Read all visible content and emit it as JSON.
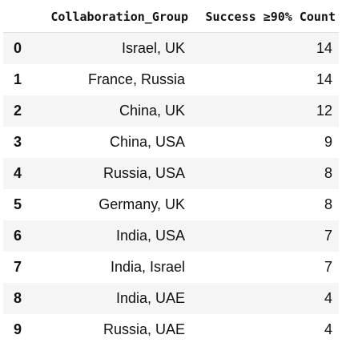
{
  "table": {
    "index_header": "",
    "columns": [
      "Collaboration_Group",
      "Success ≥90% Count"
    ],
    "rows": [
      {
        "index": "0",
        "group": "Israel, UK",
        "count": "14"
      },
      {
        "index": "1",
        "group": "France, Russia",
        "count": "14"
      },
      {
        "index": "2",
        "group": "China, UK",
        "count": "12"
      },
      {
        "index": "3",
        "group": "China, USA",
        "count": "9"
      },
      {
        "index": "4",
        "group": "Russia, USA",
        "count": "8"
      },
      {
        "index": "5",
        "group": "Germany, UK",
        "count": "8"
      },
      {
        "index": "6",
        "group": "India, USA",
        "count": "7"
      },
      {
        "index": "7",
        "group": "India, Israel",
        "count": "7"
      },
      {
        "index": "8",
        "group": "India, UAE",
        "count": "4"
      },
      {
        "index": "9",
        "group": "Russia, UAE",
        "count": "4"
      }
    ]
  },
  "colors": {
    "stripe": "#f5f5f5",
    "text": "#111111",
    "header_rule": "#e0e0e0"
  }
}
